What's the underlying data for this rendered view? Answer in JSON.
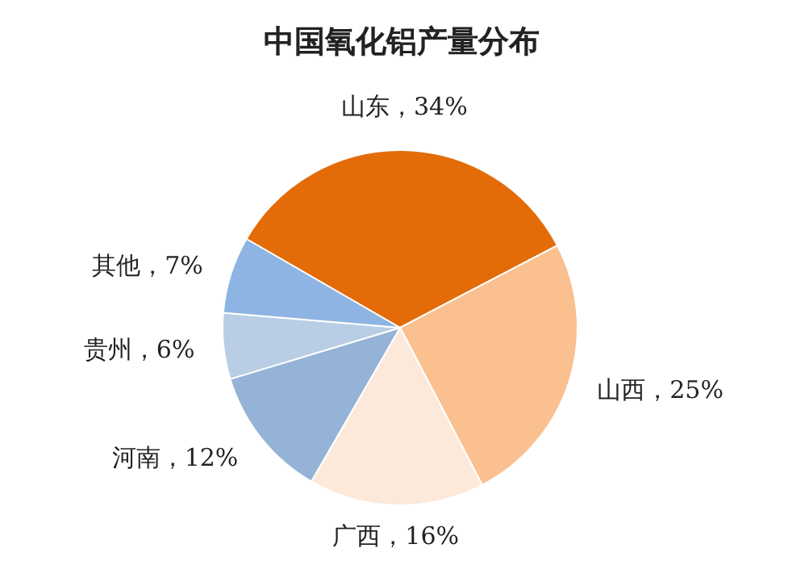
{
  "chart_data": {
    "type": "pie",
    "title": "中国氧化铝产量分布",
    "categories": [
      "山东",
      "山西",
      "广西",
      "河南",
      "贵州",
      "其他"
    ],
    "values": [
      34,
      25,
      16,
      12,
      6,
      7
    ],
    "colors": [
      "#e36c09",
      "#fac090",
      "#fde9d9",
      "#95b3d7",
      "#b9cde5",
      "#8db4e2"
    ],
    "value_labels": [
      "，34%",
      "，25%",
      "，16%",
      "，12%",
      "，6%",
      "，7%"
    ]
  }
}
